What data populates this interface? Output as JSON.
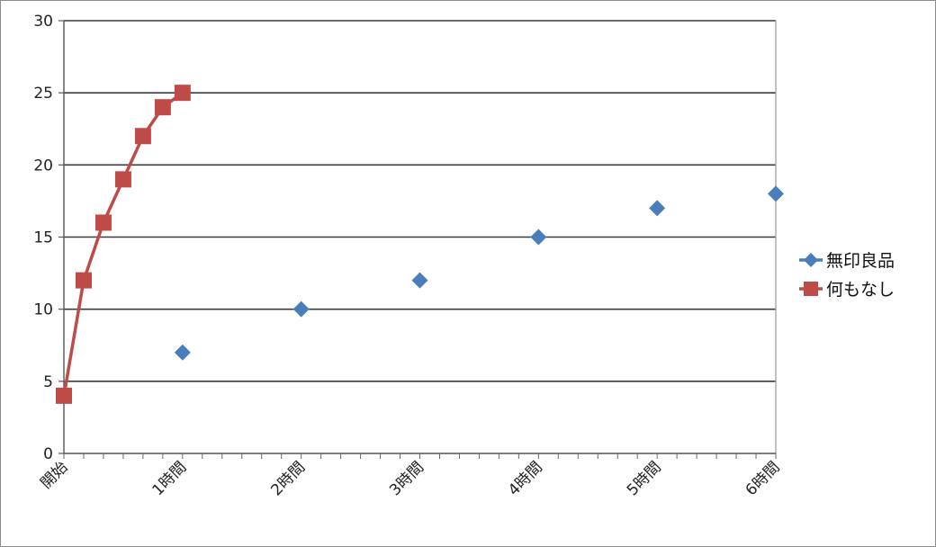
{
  "chart_data": {
    "type": "line",
    "title": "",
    "xlabel": "",
    "ylabel": "",
    "x_ticks": [
      {
        "label": "開始",
        "x": 0
      },
      {
        "label": "1時間",
        "x": 60
      },
      {
        "label": "2時間",
        "x": 120
      },
      {
        "label": "3時間",
        "x": 180
      },
      {
        "label": "4時間",
        "x": 240
      },
      {
        "label": "5時間",
        "x": 300
      },
      {
        "label": "6時間",
        "x": 360
      }
    ],
    "xlim": [
      0,
      360
    ],
    "ylim": [
      0,
      30
    ],
    "y_ticks": [
      0,
      5,
      10,
      15,
      20,
      25,
      30
    ],
    "grid": true,
    "legend_position": "right",
    "series": [
      {
        "name": "無印良品",
        "color": "#4a7ebb",
        "marker": "diamond",
        "line": false,
        "points": [
          {
            "x": 60,
            "y": 7
          },
          {
            "x": 120,
            "y": 10
          },
          {
            "x": 180,
            "y": 12
          },
          {
            "x": 240,
            "y": 15
          },
          {
            "x": 300,
            "y": 17
          },
          {
            "x": 360,
            "y": 18
          }
        ]
      },
      {
        "name": "何もなし",
        "color": "#be4b48",
        "marker": "square",
        "line": true,
        "points": [
          {
            "x": 0,
            "y": 4
          },
          {
            "x": 10,
            "y": 12
          },
          {
            "x": 20,
            "y": 16
          },
          {
            "x": 30,
            "y": 19
          },
          {
            "x": 40,
            "y": 22
          },
          {
            "x": 50,
            "y": 24
          },
          {
            "x": 60,
            "y": 25
          }
        ]
      }
    ]
  }
}
